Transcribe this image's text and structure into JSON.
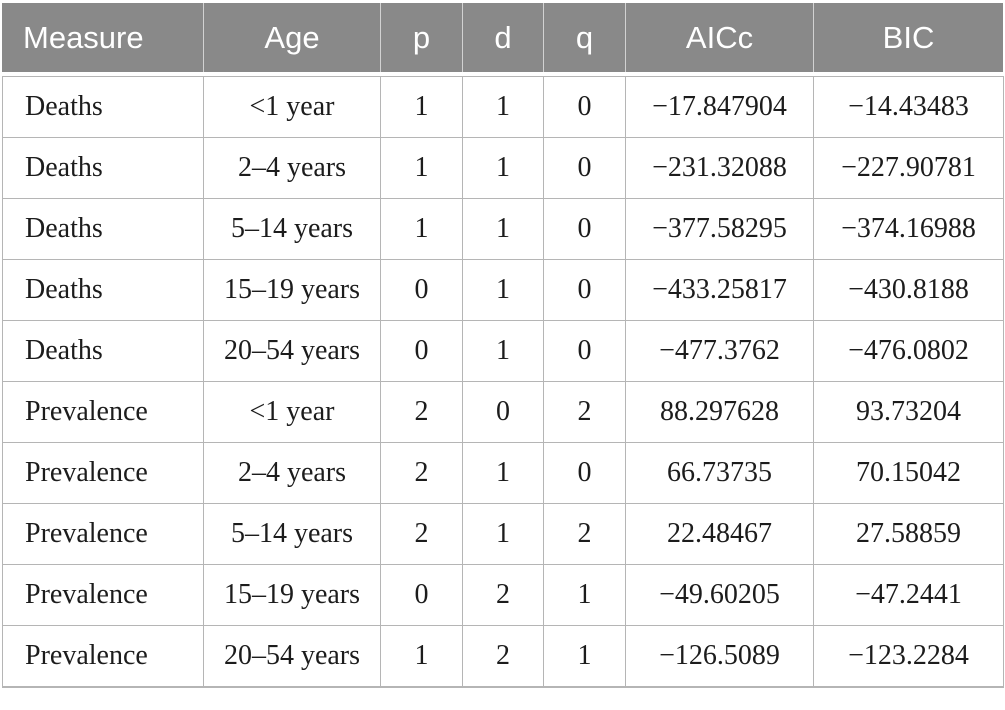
{
  "table": {
    "columns": [
      {
        "key": "measure",
        "label": "Measure"
      },
      {
        "key": "age",
        "label": "Age"
      },
      {
        "key": "p",
        "label": "p"
      },
      {
        "key": "d",
        "label": "d"
      },
      {
        "key": "q",
        "label": "q"
      },
      {
        "key": "aicc",
        "label": "AICc"
      },
      {
        "key": "bic",
        "label": "BIC"
      }
    ],
    "rows": [
      {
        "measure": "Deaths",
        "age": "<1 year",
        "p": "1",
        "d": "1",
        "q": "0",
        "aicc": "−17.847904",
        "bic": "−14.43483"
      },
      {
        "measure": "Deaths",
        "age": "2–4 years",
        "p": "1",
        "d": "1",
        "q": "0",
        "aicc": "−231.32088",
        "bic": "−227.90781"
      },
      {
        "measure": "Deaths",
        "age": "5–14 years",
        "p": "1",
        "d": "1",
        "q": "0",
        "aicc": "−377.58295",
        "bic": "−374.16988"
      },
      {
        "measure": "Deaths",
        "age": "15–19 years",
        "p": "0",
        "d": "1",
        "q": "0",
        "aicc": "−433.25817",
        "bic": "−430.8188"
      },
      {
        "measure": "Deaths",
        "age": "20–54 years",
        "p": "0",
        "d": "1",
        "q": "0",
        "aicc": "−477.3762",
        "bic": "−476.0802"
      },
      {
        "measure": "Prevalence",
        "age": "<1 year",
        "p": "2",
        "d": "0",
        "q": "2",
        "aicc": "88.297628",
        "bic": "93.73204"
      },
      {
        "measure": "Prevalence",
        "age": "2–4 years",
        "p": "2",
        "d": "1",
        "q": "0",
        "aicc": "66.73735",
        "bic": "70.15042"
      },
      {
        "measure": "Prevalence",
        "age": "5–14 years",
        "p": "2",
        "d": "1",
        "q": "2",
        "aicc": "22.48467",
        "bic": "27.58859"
      },
      {
        "measure": "Prevalence",
        "age": "15–19 years",
        "p": "0",
        "d": "2",
        "q": "1",
        "aicc": "−49.60205",
        "bic": "−47.2441"
      },
      {
        "measure": "Prevalence",
        "age": "20–54 years",
        "p": "1",
        "d": "2",
        "q": "1",
        "aicc": "−126.5089",
        "bic": "−123.2284"
      }
    ]
  },
  "colors": {
    "header_bg": "#898989",
    "header_text": "#ffffff",
    "header_divider": "#d2d2d2",
    "body_border": "#b5b5b5",
    "body_text": "#1c1c1c",
    "background": "#ffffff"
  }
}
